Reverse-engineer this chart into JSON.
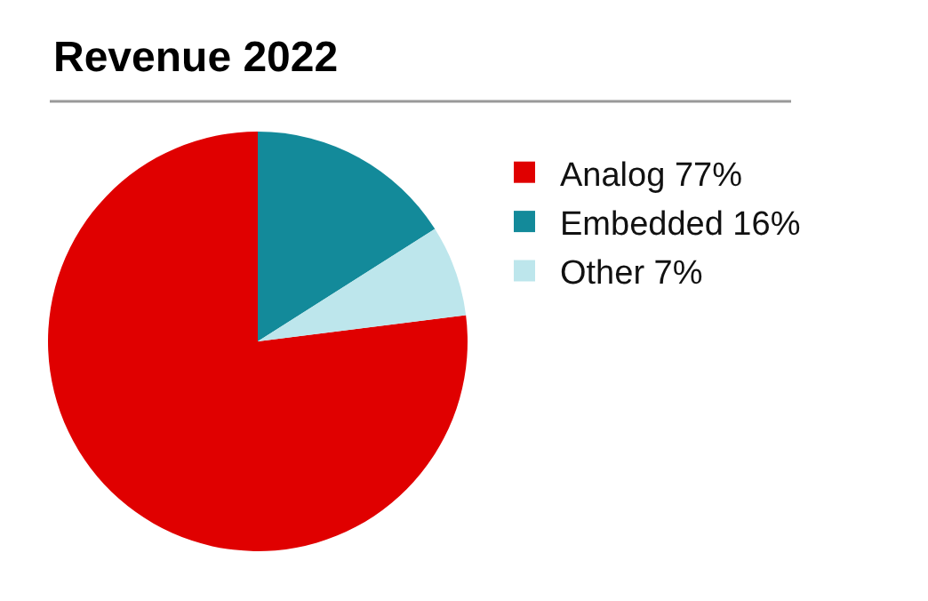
{
  "chart_data": {
    "type": "pie",
    "title": "Revenue 2022",
    "categories": [
      "Analog 77%",
      "Embedded 16%",
      "Other 7%"
    ],
    "values": [
      77,
      16,
      7
    ],
    "colors": [
      "#e00000",
      "#138a9a",
      "#bde6ec"
    ],
    "legend": "right"
  }
}
